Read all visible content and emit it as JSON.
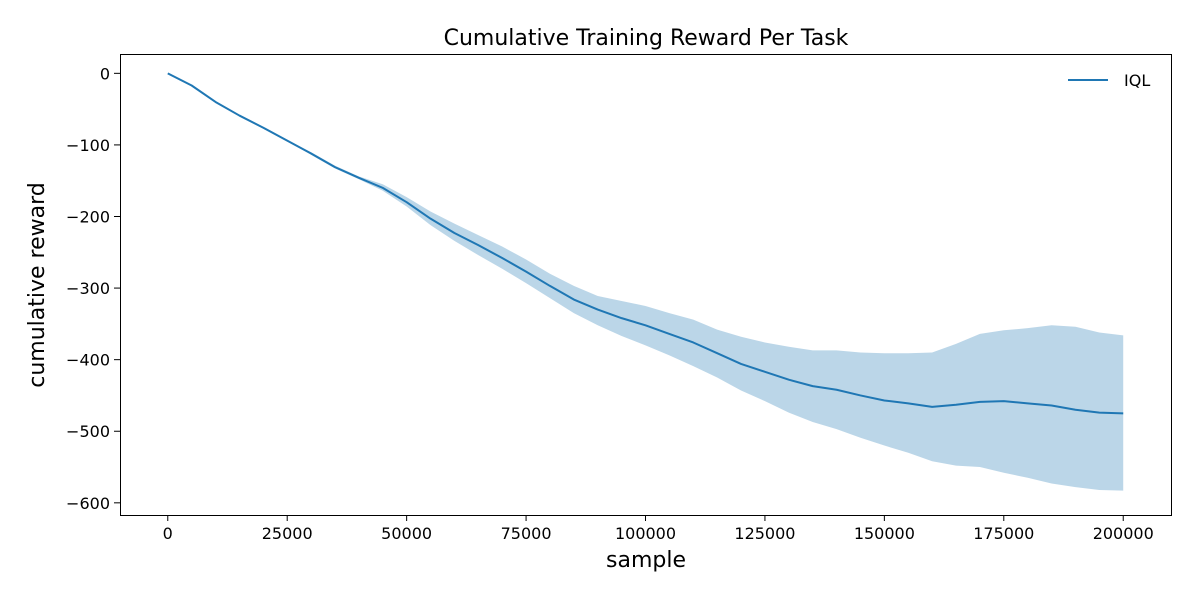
{
  "chart_data": {
    "type": "line",
    "title": "Cumulative Training Reward Per Task",
    "xlabel": "sample",
    "ylabel": "cumulative reward",
    "xlim": [
      -10000,
      210000
    ],
    "ylim": [
      -617,
      27
    ],
    "xticks": [
      0,
      25000,
      50000,
      75000,
      100000,
      125000,
      150000,
      175000,
      200000
    ],
    "xtick_labels": [
      "0",
      "25000",
      "50000",
      "75000",
      "100000",
      "125000",
      "150000",
      "175000",
      "200000"
    ],
    "yticks": [
      0,
      -100,
      -200,
      -300,
      -400,
      -500,
      -600
    ],
    "ytick_labels": [
      "0",
      "−100",
      "−200",
      "−300",
      "−400",
      "−500",
      "−600"
    ],
    "grid": false,
    "legend_position": "top-right",
    "series": [
      {
        "name": "IQL",
        "color": "#1f77b4",
        "band_color": "#1f77b4",
        "x": [
          0,
          5000,
          10000,
          15000,
          20000,
          25000,
          30000,
          35000,
          40000,
          45000,
          50000,
          55000,
          60000,
          65000,
          70000,
          75000,
          80000,
          85000,
          90000,
          95000,
          100000,
          105000,
          110000,
          115000,
          120000,
          125000,
          130000,
          135000,
          140000,
          145000,
          150000,
          155000,
          160000,
          165000,
          170000,
          175000,
          180000,
          185000,
          190000,
          195000,
          200000
        ],
        "mean": [
          0,
          -17,
          -40,
          -59,
          -76,
          -94,
          -112,
          -131,
          -146,
          -160,
          -180,
          -203,
          -223,
          -240,
          -258,
          -277,
          -297,
          -316,
          -330,
          -342,
          -352,
          -364,
          -376,
          -391,
          -406,
          -417,
          -428,
          -437,
          -442,
          -450,
          -457,
          -461,
          -466,
          -463,
          -459,
          -458,
          -461,
          -464,
          -470,
          -474,
          -475
        ],
        "lower": [
          0,
          -17,
          -40,
          -59,
          -76,
          -94,
          -114,
          -133,
          -148,
          -164,
          -186,
          -212,
          -234,
          -254,
          -273,
          -293,
          -314,
          -335,
          -352,
          -367,
          -380,
          -394,
          -409,
          -425,
          -443,
          -458,
          -474,
          -487,
          -497,
          -509,
          -520,
          -530,
          -542,
          -548,
          -550,
          -558,
          -565,
          -573,
          -578,
          -582,
          -583
        ],
        "upper": [
          0,
          -17,
          -40,
          -59,
          -76,
          -94,
          -110,
          -129,
          -144,
          -155,
          -173,
          -193,
          -210,
          -226,
          -242,
          -260,
          -280,
          -297,
          -311,
          -318,
          -325,
          -335,
          -344,
          -358,
          -368,
          -376,
          -382,
          -387,
          -387,
          -390,
          -391,
          -391,
          -390,
          -378,
          -364,
          -359,
          -356,
          -352,
          -354,
          -362,
          -366
        ]
      }
    ]
  }
}
